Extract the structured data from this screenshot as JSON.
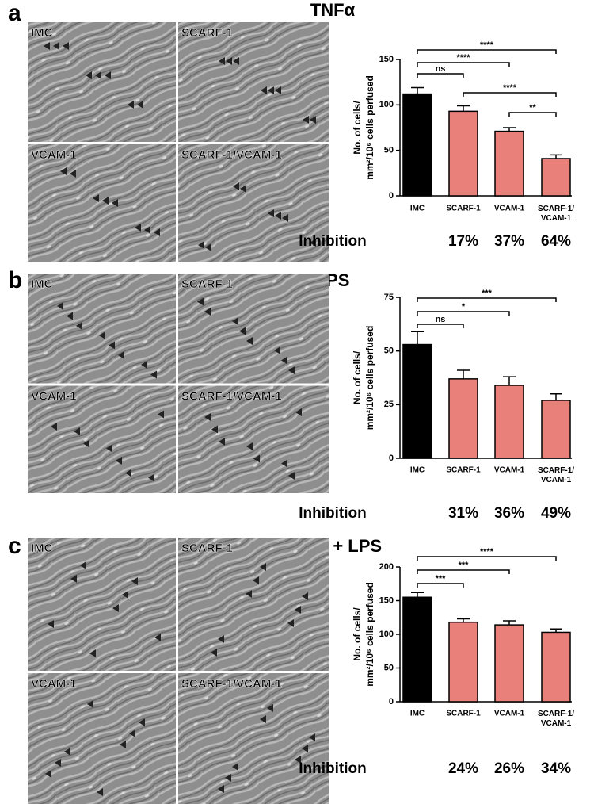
{
  "chart_data": [
    {
      "type": "bar",
      "panel": "a",
      "title": "TNFα",
      "image_labels": [
        "IMC",
        "SCARF-1",
        "VCAM-1",
        "SCARF-1/VCAM-1"
      ],
      "ylabel": [
        "No. of cells/",
        "mm²/10⁶ cells perfused"
      ],
      "categories": [
        "IMC",
        "SCARF-1",
        "VCAM-1",
        "SCARF-1/\nVCAM-1"
      ],
      "values": [
        112,
        93,
        71,
        41
      ],
      "errors": [
        7,
        6,
        4,
        4
      ],
      "colors": [
        "#000000",
        "#e9807a",
        "#e9807a",
        "#e9807a"
      ],
      "ylim": [
        0,
        150
      ],
      "yticks": [
        0,
        50,
        100,
        150
      ],
      "significance": [
        {
          "from": 0,
          "to": 1,
          "label": "ns"
        },
        {
          "from": 0,
          "to": 2,
          "label": "****"
        },
        {
          "from": 0,
          "to": 3,
          "label": "****"
        },
        {
          "from": 1,
          "to": 3,
          "label": "****"
        },
        {
          "from": 2,
          "to": 3,
          "label": "**"
        }
      ],
      "inhibition_label": "Inhibition",
      "inhibition": [
        "17%",
        "37%",
        "64%"
      ]
    },
    {
      "type": "bar",
      "panel": "b",
      "title": "LPS",
      "image_labels": [
        "IMC",
        "SCARF-1",
        "VCAM-1",
        "SCARF-1/VCAM-1"
      ],
      "ylabel": [
        "No. of cells/",
        "mm²/10⁶ cells perfused"
      ],
      "categories": [
        "IMC",
        "SCARF-1",
        "VCAM-1",
        "SCARF-1/\nVCAM-1"
      ],
      "values": [
        53,
        37,
        34,
        27
      ],
      "errors": [
        6,
        4,
        4,
        3
      ],
      "colors": [
        "#000000",
        "#e9807a",
        "#e9807a",
        "#e9807a"
      ],
      "ylim": [
        0,
        75
      ],
      "yticks": [
        0,
        25,
        50,
        75
      ],
      "significance": [
        {
          "from": 0,
          "to": 1,
          "label": "ns"
        },
        {
          "from": 0,
          "to": 2,
          "label": "*"
        },
        {
          "from": 0,
          "to": 3,
          "label": "***"
        }
      ],
      "inhibition_label": "Inhibition",
      "inhibition": [
        "31%",
        "36%",
        "49%"
      ]
    },
    {
      "type": "bar",
      "panel": "c",
      "title": "TNFα + LPS",
      "image_labels": [
        "IMC",
        "SCARF-1",
        "VCAM-1",
        "SCARF-1/VCAM-1"
      ],
      "ylabel": [
        "No. of cells/",
        "mm²/10⁶ cells perfused"
      ],
      "categories": [
        "IMC",
        "SCARF-1",
        "VCAM-1",
        "SCARF-1/\nVCAM-1"
      ],
      "values": [
        155,
        118,
        114,
        103
      ],
      "errors": [
        7,
        5,
        6,
        5
      ],
      "colors": [
        "#000000",
        "#e9807a",
        "#e9807a",
        "#e9807a"
      ],
      "ylim": [
        0,
        200
      ],
      "yticks": [
        0,
        50,
        100,
        150,
        200
      ],
      "significance": [
        {
          "from": 0,
          "to": 1,
          "label": "***"
        },
        {
          "from": 0,
          "to": 2,
          "label": "***"
        },
        {
          "from": 0,
          "to": 3,
          "label": "****"
        }
      ],
      "inhibition_label": "Inhibition",
      "inhibition": [
        "24%",
        "26%",
        "34%"
      ]
    }
  ]
}
